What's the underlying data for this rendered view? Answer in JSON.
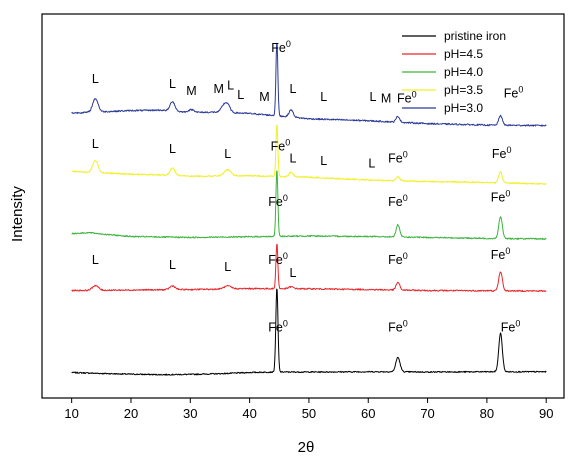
{
  "chart_data": {
    "type": "line",
    "title": "",
    "xlabel": "2θ",
    "ylabel": "Intensity",
    "xlim": [
      5,
      93
    ],
    "xticks": [
      10,
      20,
      30,
      40,
      50,
      60,
      70,
      80,
      90
    ],
    "yticks": [],
    "grid": false,
    "legend_position": "top-right",
    "series": [
      {
        "name": "pristine iron",
        "color": "#000000",
        "baseline": 0.0,
        "points": [
          [
            10,
            0.0
          ],
          [
            15,
            -0.2
          ],
          [
            20,
            -0.35
          ],
          [
            25,
            -0.45
          ],
          [
            30,
            -0.4
          ],
          [
            35,
            -0.25
          ],
          [
            40,
            0.0
          ],
          [
            44,
            0.1
          ],
          [
            50,
            0.1
          ],
          [
            60,
            0.15
          ],
          [
            64,
            0.15
          ],
          [
            70,
            0.1
          ],
          [
            80,
            0.15
          ],
          [
            85,
            0.15
          ],
          [
            90,
            0.15
          ]
        ],
        "peaks": [
          [
            44.6,
            17.5,
            0.18
          ],
          [
            65.0,
            3.0,
            0.35
          ],
          [
            82.3,
            8.0,
            0.3
          ]
        ],
        "noise": 0.12,
        "labels": [
          {
            "text": "Fe",
            "sup": "0",
            "x": 44.8,
            "y": 8.5
          },
          {
            "text": "Fe",
            "sup": "0",
            "x": 65.0,
            "y": 8.5
          },
          {
            "text": "Fe",
            "sup": "0",
            "x": 84.0,
            "y": 8.5
          }
        ]
      },
      {
        "name": "pH=4.5",
        "color": "#e8262a",
        "baseline": 17.0,
        "points": [
          [
            10,
            0.0
          ],
          [
            20,
            0.1
          ],
          [
            30,
            0.2
          ],
          [
            40,
            0.4
          ],
          [
            50,
            0.35
          ],
          [
            60,
            0.2
          ],
          [
            70,
            0.0
          ],
          [
            80,
            -0.05
          ],
          [
            90,
            -0.1
          ]
        ],
        "peaks": [
          [
            14.0,
            1.0,
            0.5
          ],
          [
            27.0,
            0.8,
            0.45
          ],
          [
            36.3,
            0.6,
            0.6
          ],
          [
            44.6,
            9.5,
            0.16
          ],
          [
            47.0,
            0.4,
            0.4
          ],
          [
            65.0,
            1.6,
            0.3
          ],
          [
            82.3,
            4.0,
            0.3
          ]
        ],
        "noise": 0.14,
        "labels": [
          {
            "text": "L",
            "sup": "",
            "x": 14.0,
            "y": 5.5
          },
          {
            "text": "L",
            "sup": "",
            "x": 27.0,
            "y": 4.5
          },
          {
            "text": "L",
            "sup": "",
            "x": 36.3,
            "y": 4.0
          },
          {
            "text": "Fe",
            "sup": "0",
            "x": 44.8,
            "y": 5.5
          },
          {
            "text": "L",
            "sup": "",
            "x": 47.3,
            "y": 2.8
          },
          {
            "text": "Fe",
            "sup": "0",
            "x": 65.0,
            "y": 5.5
          },
          {
            "text": "Fe",
            "sup": "0",
            "x": 82.3,
            "y": 6.5
          }
        ]
      },
      {
        "name": "pH=4.0",
        "color": "#3cb33c",
        "baseline": 28.0,
        "points": [
          [
            10,
            0.8
          ],
          [
            13,
            1.0
          ],
          [
            16,
            0.6
          ],
          [
            20,
            0.2
          ],
          [
            30,
            0.0
          ],
          [
            40,
            0.15
          ],
          [
            50,
            0.3
          ],
          [
            60,
            0.2
          ],
          [
            70,
            0.0
          ],
          [
            80,
            -0.2
          ],
          [
            90,
            -0.3
          ]
        ],
        "peaks": [
          [
            44.6,
            14.0,
            0.16
          ],
          [
            65.0,
            2.5,
            0.3
          ],
          [
            82.3,
            4.5,
            0.3
          ]
        ],
        "noise": 0.13,
        "labels": [
          {
            "text": "Fe",
            "sup": "0",
            "x": 44.8,
            "y": 6.5
          },
          {
            "text": "Fe",
            "sup": "0",
            "x": 65.0,
            "y": 6.5
          },
          {
            "text": "Fe",
            "sup": "0",
            "x": 82.3,
            "y": 7.5
          }
        ]
      },
      {
        "name": "pH=3.5",
        "color": "#f0f02a",
        "baseline": 40.5,
        "points": [
          [
            10,
            1.2
          ],
          [
            20,
            0.6
          ],
          [
            25,
            0.5
          ],
          [
            30,
            0.2
          ],
          [
            40,
            0.3
          ],
          [
            50,
            0.0
          ],
          [
            60,
            -0.6
          ],
          [
            70,
            -0.9
          ],
          [
            80,
            -1.1
          ],
          [
            90,
            -1.4
          ]
        ],
        "peaks": [
          [
            14.0,
            2.5,
            0.45
          ],
          [
            27.0,
            1.5,
            0.4
          ],
          [
            36.3,
            1.3,
            0.55
          ],
          [
            44.6,
            11.0,
            0.16
          ],
          [
            47.0,
            0.9,
            0.35
          ],
          [
            65.0,
            0.9,
            0.3
          ],
          [
            82.3,
            2.2,
            0.3
          ]
        ],
        "noise": 0.14,
        "labels": [
          {
            "text": "L",
            "sup": "",
            "x": 14.0,
            "y": 6.0
          },
          {
            "text": "L",
            "sup": "",
            "x": 27.0,
            "y": 5.0
          },
          {
            "text": "L",
            "sup": "",
            "x": 36.3,
            "y": 4.0
          },
          {
            "text": "Fe",
            "sup": "0",
            "x": 45.2,
            "y": 5.5
          },
          {
            "text": "L",
            "sup": "",
            "x": 47.3,
            "y": 3.0
          },
          {
            "text": "L",
            "sup": "",
            "x": 52.5,
            "y": 2.5
          },
          {
            "text": "L",
            "sup": "",
            "x": 60.6,
            "y": 2.0
          },
          {
            "text": "Fe",
            "sup": "0",
            "x": 65.0,
            "y": 3.0
          },
          {
            "text": "Fe",
            "sup": "0",
            "x": 82.5,
            "y": 4.0
          }
        ]
      },
      {
        "name": "pH=3.0",
        "color": "#2b3a97",
        "baseline": 53.5,
        "points": [
          [
            10,
            0.3
          ],
          [
            20,
            0.8
          ],
          [
            25,
            0.9
          ],
          [
            30,
            0.4
          ],
          [
            35,
            0.5
          ],
          [
            40,
            0.2
          ],
          [
            45,
            -0.3
          ],
          [
            50,
            -0.9
          ],
          [
            60,
            -1.3
          ],
          [
            70,
            -1.9
          ],
          [
            80,
            -2.2
          ],
          [
            90,
            -2.3
          ]
        ],
        "peaks": [
          [
            14.0,
            2.8,
            0.45
          ],
          [
            27.0,
            2.0,
            0.4
          ],
          [
            30.2,
            0.6,
            0.5
          ],
          [
            35.6,
            1.3,
            0.4
          ],
          [
            36.3,
            1.6,
            0.4
          ],
          [
            44.6,
            15.5,
            0.16
          ],
          [
            47.0,
            1.5,
            0.35
          ],
          [
            65.0,
            1.2,
            0.3
          ],
          [
            82.3,
            2.0,
            0.3
          ]
        ],
        "noise": 0.15,
        "labels": [
          {
            "text": "L",
            "sup": "",
            "x": 14.0,
            "y": 6.5
          },
          {
            "text": "L",
            "sup": "",
            "x": 27.0,
            "y": 5.5
          },
          {
            "text": "M",
            "sup": "",
            "x": 30.2,
            "y": 4.0
          },
          {
            "text": "M",
            "sup": "",
            "x": 34.8,
            "y": 4.5
          },
          {
            "text": "L",
            "sup": "",
            "x": 36.8,
            "y": 5.2
          },
          {
            "text": "L",
            "sup": "",
            "x": 38.5,
            "y": 3.2
          },
          {
            "text": "M",
            "sup": "",
            "x": 42.5,
            "y": 2.8
          },
          {
            "text": "Fe",
            "sup": "0",
            "x": 45.3,
            "y": 13.0
          },
          {
            "text": "L",
            "sup": "",
            "x": 47.3,
            "y": 4.4
          },
          {
            "text": "L",
            "sup": "",
            "x": 52.5,
            "y": 2.8
          },
          {
            "text": "L",
            "sup": "",
            "x": 60.8,
            "y": 2.8
          },
          {
            "text": "M",
            "sup": "",
            "x": 63.0,
            "y": 2.5
          },
          {
            "text": "Fe",
            "sup": "0",
            "x": 66.5,
            "y": 2.5
          },
          {
            "text": "Fe",
            "sup": "0",
            "x": 84.5,
            "y": 3.5
          }
        ]
      }
    ]
  }
}
